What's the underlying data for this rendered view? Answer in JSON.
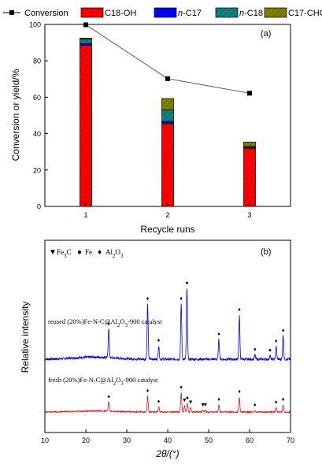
{
  "chart_data": [
    {
      "type": "bar",
      "subtype": "stacked-bar-with-line",
      "panel_label": "(a)",
      "xlabel": "Recycle runs",
      "ylabel": "Conversion or yield/%",
      "categories": [
        "1",
        "2",
        "3"
      ],
      "xlim": [
        0.5,
        3.5
      ],
      "ylim": [
        0,
        100
      ],
      "yticks": [
        "0",
        "20",
        "40",
        "60",
        "80",
        "100"
      ],
      "grid": false,
      "legend_position": "top",
      "line_series": {
        "name": "Conversion",
        "values": [
          99.8,
          70.2,
          62.2
        ],
        "color": "#000000"
      },
      "series": [
        {
          "name": "C18-OH",
          "name_parts": [
            "C18-OH"
          ],
          "values": [
            88.5,
            45.5,
            32.0
          ],
          "color": "#ff0000",
          "hatch": true
        },
        {
          "name": "n-C17",
          "name_parts": [
            "n",
            "-C17"
          ],
          "values": [
            1.0,
            1.2,
            0.4
          ],
          "color": "#0000ff",
          "hatch": true
        },
        {
          "name": "n-C18",
          "name_parts": [
            "n",
            "-C18"
          ],
          "values": [
            2.4,
            6.3,
            0.6
          ],
          "color": "#128080",
          "hatch": true
        },
        {
          "name": "C17-CHO",
          "name_parts": [
            "C17-CHO"
          ],
          "values": [
            0.6,
            6.3,
            2.4
          ],
          "color": "#808000",
          "hatch": true
        }
      ]
    },
    {
      "type": "line",
      "subtype": "xrd-pattern",
      "panel_label": "(b)",
      "xlabel": "2θ/(°)",
      "ylabel": "Relative intensity",
      "xlim": [
        10,
        70
      ],
      "xticks": [
        "10",
        "20",
        "30",
        "40",
        "50",
        "60",
        "70"
      ],
      "grid": false,
      "legend": [
        {
          "symbol": "▼",
          "name": "Fe3C",
          "parts": [
            "Fe",
            "3",
            "C"
          ]
        },
        {
          "symbol": "●",
          "name": "Fe",
          "parts": [
            "Fe"
          ]
        },
        {
          "symbol": "♦",
          "name": "Al2O3",
          "parts": [
            "Al",
            "2",
            "O",
            "3"
          ]
        }
      ],
      "series": [
        {
          "name": "reused (20%)Fe-N-C@Al2O3-900 catalyst",
          "label_parts": [
            "reused (20%)Fe-N-C@Al",
            "2",
            "O",
            "3",
            "-900 catalyst"
          ],
          "color": "#0000ff",
          "peaks": [
            {
              "x": 25.6,
              "h": 0.42,
              "marker": "♦"
            },
            {
              "x": 35.1,
              "h": 0.78,
              "marker": "♦"
            },
            {
              "x": 37.8,
              "h": 0.19,
              "marker": "♦"
            },
            {
              "x": 43.3,
              "h": 0.78,
              "marker": "♦"
            },
            {
              "x": 44.7,
              "h": 1.0,
              "marker": "●"
            },
            {
              "x": 52.5,
              "h": 0.28,
              "marker": "♦"
            },
            {
              "x": 57.5,
              "h": 0.62,
              "marker": "♦"
            },
            {
              "x": 61.3,
              "h": 0.06,
              "marker": "♦"
            },
            {
              "x": 65.0,
              "h": 0.05,
              "marker": "●"
            },
            {
              "x": 66.5,
              "h": 0.18,
              "marker": "♦"
            },
            {
              "x": 68.2,
              "h": 0.33,
              "marker": "♦"
            }
          ]
        },
        {
          "name": "fresh (20%)Fe-N-C@Al2O3-900 catalyst",
          "label_parts": [
            "fresh (20%)Fe-N-C@Al",
            "2",
            "O",
            "3",
            "-900 catalyst"
          ],
          "color": "#e8141c",
          "peaks": [
            {
              "x": 25.6,
              "h": 0.28,
              "marker": "♦"
            },
            {
              "x": 35.1,
              "h": 0.45,
              "marker": "♦"
            },
            {
              "x": 37.8,
              "h": 0.15,
              "marker": "♦"
            },
            {
              "x": 43.3,
              "h": 0.55,
              "marker": "♦"
            },
            {
              "x": 44.1,
              "h": 0.18,
              "marker": "▼"
            },
            {
              "x": 44.8,
              "h": 0.25,
              "marker": "●"
            },
            {
              "x": 45.6,
              "h": 0.12,
              "marker": "▼"
            },
            {
              "x": 48.6,
              "h": 0.05,
              "marker": "▼"
            },
            {
              "x": 49.2,
              "h": 0.05,
              "marker": "▼"
            },
            {
              "x": 52.5,
              "h": 0.2,
              "marker": "♦"
            },
            {
              "x": 57.5,
              "h": 0.42,
              "marker": "♦"
            },
            {
              "x": 61.3,
              "h": 0.05,
              "marker": "♦"
            },
            {
              "x": 66.5,
              "h": 0.12,
              "marker": "♦"
            },
            {
              "x": 68.2,
              "h": 0.2,
              "marker": "♦"
            }
          ]
        }
      ]
    }
  ]
}
